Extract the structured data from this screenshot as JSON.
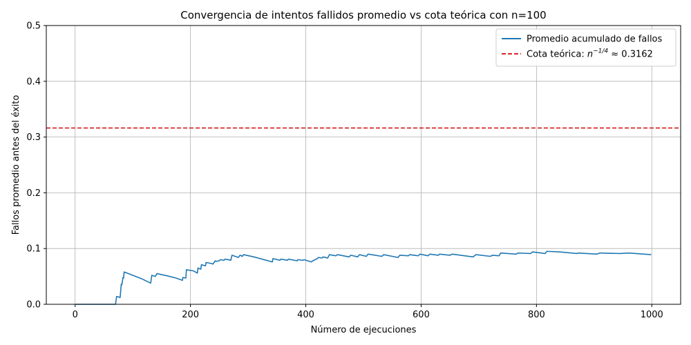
{
  "chart_data": {
    "type": "line",
    "title": "Convergencia de intentos fallidos promedio vs cota teórica con n=100",
    "xlabel": "Número de ejecuciones",
    "ylabel": "Fallos promedio antes del éxito",
    "xlim": [
      -50,
      1050
    ],
    "ylim": [
      0,
      0.5
    ],
    "x_ticks": [
      0,
      200,
      400,
      600,
      800,
      1000
    ],
    "y_ticks": [
      0.0,
      0.1,
      0.2,
      0.3,
      0.4,
      0.5
    ],
    "x_tick_labels": [
      "0",
      "200",
      "400",
      "600",
      "800",
      "1000"
    ],
    "y_tick_labels": [
      "0.0",
      "0.1",
      "0.2",
      "0.3",
      "0.4",
      "0.5"
    ],
    "grid": true,
    "legend_position": "top-right",
    "series": [
      {
        "name": "Promedio acumulado de fallos",
        "color": "#1f77b4",
        "style": "solid",
        "x": [
          1,
          70,
          72,
          76,
          78,
          80,
          81,
          83,
          84,
          85,
          100,
          115,
          131,
          133,
          139,
          142,
          160,
          175,
          186,
          187,
          192,
          193,
          205,
          212,
          213,
          218,
          219,
          226,
          227,
          237,
          239,
          243,
          244,
          250,
          252,
          258,
          260,
          270,
          272,
          283,
          286,
          290,
          292,
          310,
          342,
          343,
          355,
          357,
          368,
          370,
          385,
          386,
          395,
          397,
          410,
          412,
          420,
          422,
          428,
          430,
          438,
          441,
          452,
          455,
          475,
          478,
          490,
          493,
          505,
          508,
          532,
          535,
          560,
          563,
          578,
          580,
          595,
          598,
          612,
          615,
          630,
          632,
          650,
          654,
          690,
          695,
          720,
          724,
          735,
          738,
          765,
          768,
          790,
          793,
          815,
          818,
          840,
          870,
          872,
          905,
          910,
          945,
          960,
          999
        ],
        "y": [
          0.0,
          0.0,
          0.014,
          0.013,
          0.012,
          0.036,
          0.035,
          0.048,
          0.047,
          0.058,
          0.052,
          0.046,
          0.038,
          0.052,
          0.05,
          0.055,
          0.051,
          0.047,
          0.043,
          0.048,
          0.047,
          0.062,
          0.06,
          0.056,
          0.065,
          0.063,
          0.071,
          0.069,
          0.075,
          0.073,
          0.072,
          0.078,
          0.077,
          0.078,
          0.08,
          0.079,
          0.081,
          0.079,
          0.088,
          0.084,
          0.088,
          0.086,
          0.089,
          0.085,
          0.076,
          0.082,
          0.079,
          0.081,
          0.079,
          0.081,
          0.078,
          0.08,
          0.079,
          0.08,
          0.076,
          0.078,
          0.082,
          0.084,
          0.083,
          0.085,
          0.083,
          0.089,
          0.087,
          0.089,
          0.085,
          0.088,
          0.085,
          0.089,
          0.086,
          0.09,
          0.086,
          0.089,
          0.084,
          0.088,
          0.087,
          0.089,
          0.087,
          0.09,
          0.087,
          0.09,
          0.088,
          0.09,
          0.088,
          0.09,
          0.085,
          0.089,
          0.086,
          0.088,
          0.087,
          0.092,
          0.09,
          0.092,
          0.091,
          0.094,
          0.091,
          0.095,
          0.094,
          0.091,
          0.092,
          0.09,
          0.092,
          0.091,
          0.092,
          0.089
        ]
      },
      {
        "name": "Cota teórica: n^(-1/4) ≈ 0.3162",
        "color": "#d62728",
        "style": "dashed",
        "y_constant": 0.3162
      }
    ],
    "legend": {
      "entries": [
        {
          "label": "Promedio acumulado de fallos"
        },
        {
          "label_prefix": "Cota teórica: ",
          "label_base": "n",
          "label_sup": "−1/4",
          "label_suffix": " ≈ 0.3162"
        }
      ]
    }
  }
}
